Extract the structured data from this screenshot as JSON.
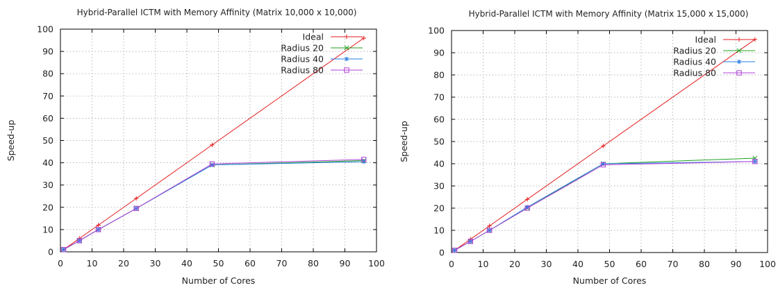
{
  "chart_data": [
    {
      "type": "line",
      "title": "Hybrid-Parallel ICTM with Memory Affinity (Matrix 10,000 x 10,000)",
      "xlabel": "Number of Cores",
      "ylabel": "Speed-up",
      "xlim": [
        0,
        100
      ],
      "ylim": [
        0,
        100
      ],
      "xticks": [
        "0",
        "10",
        "20",
        "30",
        "40",
        "50",
        "60",
        "70",
        "80",
        "90",
        "100"
      ],
      "yticks": [
        "0",
        "10",
        "20",
        "30",
        "40",
        "50",
        "60",
        "70",
        "80",
        "90",
        "100"
      ],
      "grid": true,
      "legend_position": "top-right",
      "series": [
        {
          "name": "Ideal",
          "color": "#e41a1c",
          "marker": "plus",
          "x": [
            1,
            6,
            12,
            24,
            48,
            96
          ],
          "y": [
            1,
            6,
            12,
            24,
            48,
            96
          ]
        },
        {
          "name": "Radius 20",
          "color": "#1ca01c",
          "marker": "cross",
          "x": [
            1,
            6,
            12,
            24,
            48,
            96
          ],
          "y": [
            1,
            5,
            10,
            19.5,
            39,
            41
          ]
        },
        {
          "name": "Radius 40",
          "color": "#2a7fe0",
          "marker": "star",
          "x": [
            1,
            6,
            12,
            24,
            48,
            96
          ],
          "y": [
            1,
            5,
            10,
            19.5,
            39,
            40.5
          ]
        },
        {
          "name": "Radius 80",
          "color": "#b040d8",
          "marker": "square",
          "x": [
            1,
            6,
            12,
            24,
            48,
            96
          ],
          "y": [
            1,
            5,
            10,
            19.5,
            39.5,
            41.5
          ]
        }
      ]
    },
    {
      "type": "line",
      "title": "Hybrid-Parallel ICTM with Memory Affinity (Matrix 15,000 x 15,000)",
      "xlabel": "Number of Cores",
      "ylabel": "Speed-up",
      "xlim": [
        0,
        100
      ],
      "ylim": [
        0,
        100
      ],
      "xticks": [
        "0",
        "10",
        "20",
        "30",
        "40",
        "50",
        "60",
        "70",
        "80",
        "90",
        "100"
      ],
      "yticks": [
        "0",
        "10",
        "20",
        "30",
        "40",
        "50",
        "60",
        "70",
        "80",
        "90",
        "100"
      ],
      "grid": true,
      "legend_position": "top-right",
      "series": [
        {
          "name": "Ideal",
          "color": "#e41a1c",
          "marker": "plus",
          "x": [
            1,
            6,
            12,
            24,
            48,
            96
          ],
          "y": [
            1,
            6,
            12,
            24,
            48,
            96
          ]
        },
        {
          "name": "Radius 20",
          "color": "#1ca01c",
          "marker": "cross",
          "x": [
            1,
            6,
            12,
            24,
            48,
            96
          ],
          "y": [
            1,
            5,
            10,
            20,
            40,
            42.5
          ]
        },
        {
          "name": "Radius 40",
          "color": "#2a7fe0",
          "marker": "star",
          "x": [
            1,
            6,
            12,
            24,
            48,
            96
          ],
          "y": [
            1,
            5,
            10,
            20.5,
            40,
            41
          ]
        },
        {
          "name": "Radius 80",
          "color": "#b040d8",
          "marker": "square",
          "x": [
            1,
            6,
            12,
            24,
            48,
            96
          ],
          "y": [
            1,
            5,
            10,
            20,
            39.5,
            41
          ]
        }
      ]
    }
  ]
}
